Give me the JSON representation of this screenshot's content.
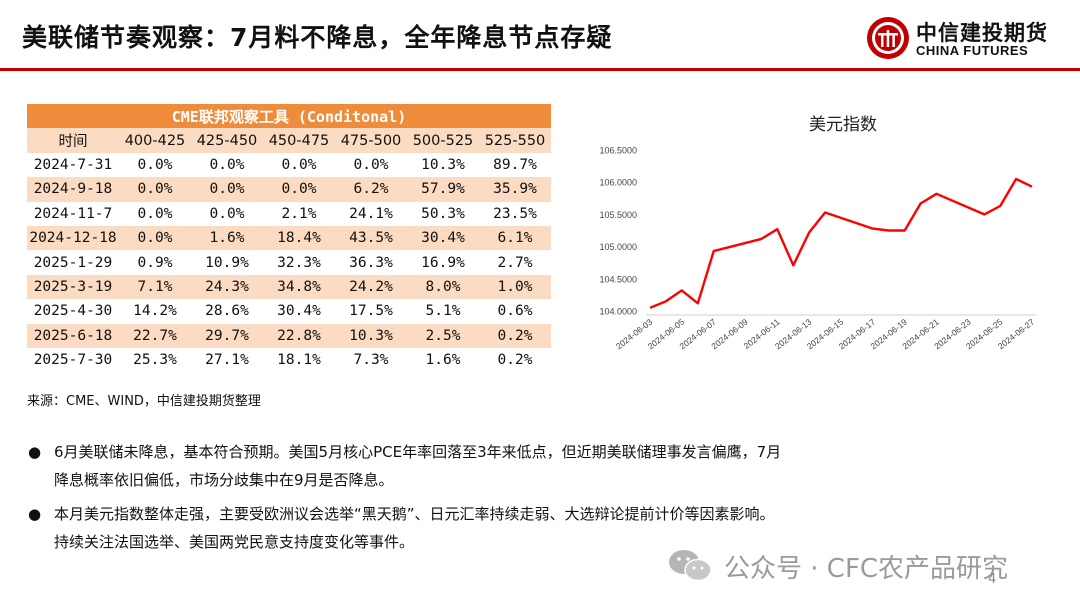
{
  "header": {
    "title": "美联储节奏观察：7月料不降息，全年降息节点存疑",
    "logo_cn": "中信建投期货",
    "logo_en": "CHINA FUTURES",
    "accent": "#c00000"
  },
  "table": {
    "title": "CME联邦观察工具 (Conditonal)",
    "columns": [
      "时间",
      "400-425",
      "425-450",
      "450-475",
      "475-500",
      "500-525",
      "525-550"
    ],
    "rows": [
      [
        "2024-7-31",
        "0.0%",
        "0.0%",
        "0.0%",
        "0.0%",
        "10.3%",
        "89.7%"
      ],
      [
        "2024-9-18",
        "0.0%",
        "0.0%",
        "0.0%",
        "6.2%",
        "57.9%",
        "35.9%"
      ],
      [
        "2024-11-7",
        "0.0%",
        "0.0%",
        "2.1%",
        "24.1%",
        "50.3%",
        "23.5%"
      ],
      [
        "2024-12-18",
        "0.0%",
        "1.6%",
        "18.4%",
        "43.5%",
        "30.4%",
        "6.1%"
      ],
      [
        "2025-1-29",
        "0.9%",
        "10.9%",
        "32.3%",
        "36.3%",
        "16.9%",
        "2.7%"
      ],
      [
        "2025-3-19",
        "7.1%",
        "24.3%",
        "34.8%",
        "24.2%",
        "8.0%",
        "1.0%"
      ],
      [
        "2025-4-30",
        "14.2%",
        "28.6%",
        "30.4%",
        "17.5%",
        "5.1%",
        "0.6%"
      ],
      [
        "2025-6-18",
        "22.7%",
        "29.7%",
        "22.8%",
        "10.3%",
        "2.5%",
        "0.2%"
      ],
      [
        "2025-7-30",
        "25.3%",
        "27.1%",
        "18.1%",
        "7.3%",
        "1.6%",
        "0.2%"
      ]
    ],
    "header_color": "#ef8c3c",
    "stripe_color": "#fbdcc3"
  },
  "source": "来源：CME、WIND，中信建投期货整理",
  "chart_data": {
    "type": "line",
    "title": "美元指数",
    "xlabel": "",
    "ylabel": "",
    "ylim": [
      104.0,
      106.5
    ],
    "yticks": [
      "104.0000",
      "104.5000",
      "105.0000",
      "105.5000",
      "106.0000",
      "106.5000"
    ],
    "x_tick_labels": [
      "2024-06-03",
      "2024-06-05",
      "2024-06-07",
      "2024-06-09",
      "2024-06-11",
      "2024-06-13",
      "2024-06-15",
      "2024-06-17",
      "2024-06-19",
      "2024-06-21",
      "2024-06-23",
      "2024-06-25",
      "2024-06-27"
    ],
    "x": [
      "2024-06-03",
      "2024-06-04",
      "2024-06-05",
      "2024-06-06",
      "2024-06-07",
      "2024-06-10",
      "2024-06-11",
      "2024-06-12",
      "2024-06-13",
      "2024-06-14",
      "2024-06-17",
      "2024-06-18",
      "2024-06-19",
      "2024-06-20",
      "2024-06-21",
      "2024-06-24",
      "2024-06-25",
      "2024-06-26",
      "2024-06-27"
    ],
    "series": [
      {
        "values": [
          104.05,
          104.15,
          104.32,
          104.12,
          104.93,
          105.12,
          105.27,
          104.71,
          105.22,
          105.53,
          105.28,
          105.25,
          105.25,
          105.67,
          105.82,
          105.5,
          105.63,
          106.05,
          105.93
        ],
        "color": "#ff0000"
      }
    ],
    "grid": false,
    "legend": "none"
  },
  "bullets": [
    {
      "lines": [
        "6月美联储未降息，基本符合预期。美国5月核心PCE年率回落至3年来低点，但近期美联储理事发言偏鹰，7月",
        "降息概率依旧偏低，市场分歧集中在9月是否降息。"
      ]
    },
    {
      "lines": [
        "本月美元指数整体走强，主要受欧洲议会选举“黑天鹅”、日元汇率持续走弱、大选辩论提前计价等因素影响。",
        "持续关注法国选举、美国两党民意支持度变化等事件。"
      ]
    }
  ],
  "bullet_symbol": "●",
  "watermark": "公众号 · CFC农产品研究",
  "page_number": "4"
}
